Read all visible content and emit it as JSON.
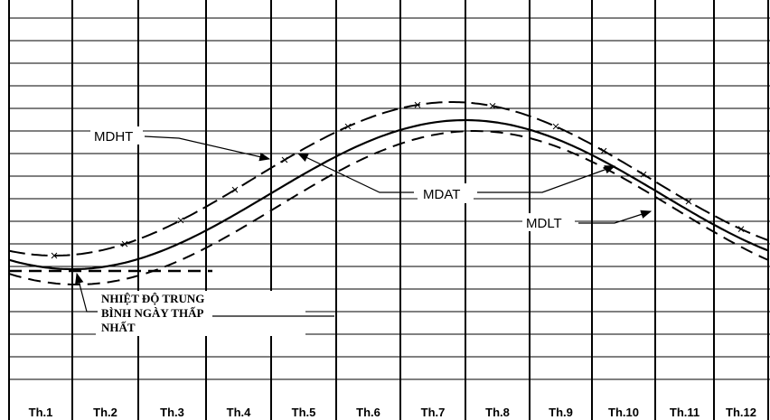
{
  "curve_labels": [
    "MDHT",
    "MDAT",
    "MDLT"
  ],
  "note": [
    "NHIỆT ĐỘ TRUNG",
    "BÌNH NGÀY THẤP",
    "NHẤT"
  ],
  "months": [
    "Th.1",
    "Th.2",
    "Th.3",
    "Th.4",
    "Th.5",
    "Th.6",
    "Th.7",
    "Th.8",
    "Th.9",
    "Th.10",
    "Th.11",
    "Th.12"
  ]
}
